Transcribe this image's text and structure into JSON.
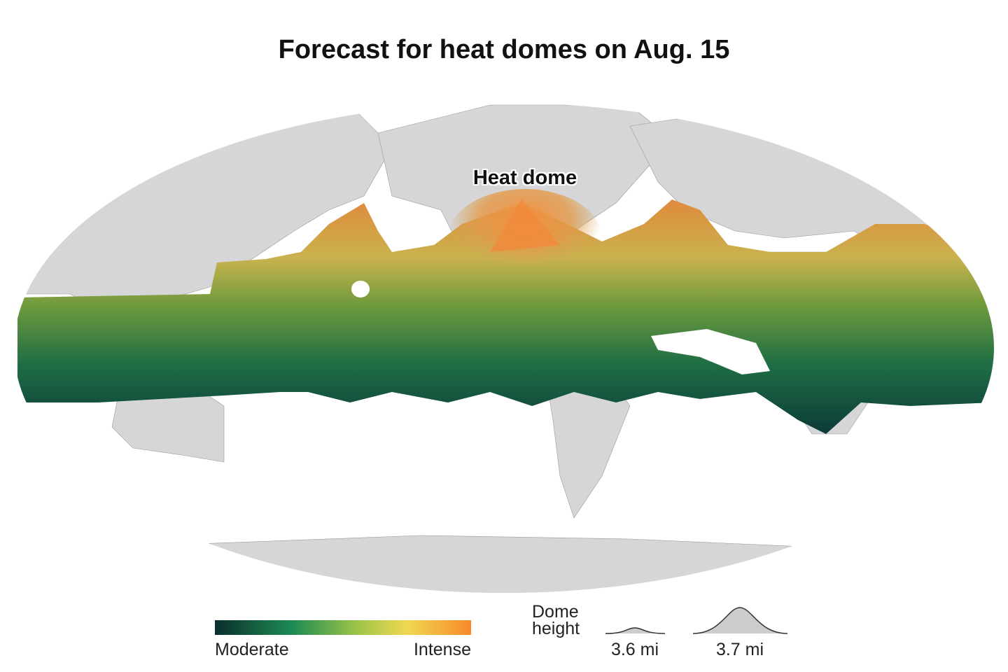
{
  "header": {
    "title": "Forecast for heat domes on Aug. 15"
  },
  "map": {
    "annotation": "Heat dome"
  },
  "legend": {
    "color": {
      "low": "Moderate",
      "high": "Intense"
    },
    "height": {
      "title": "Dome height",
      "small": "3.6 mi",
      "large": "3.7 mi"
    }
  }
}
